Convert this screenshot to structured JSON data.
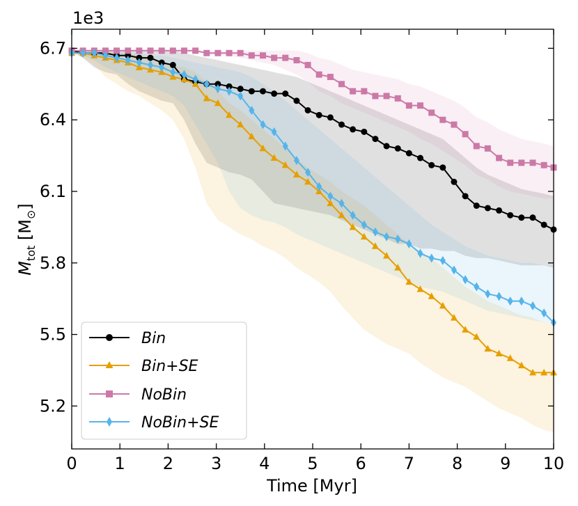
{
  "chart_data": {
    "type": "line",
    "xlabel": "Time [Myr]",
    "ylabel_main": "M",
    "ylabel_sub": "tot",
    "ylabel_unit_open": " [M",
    "ylabel_unit_sub": "⊙",
    "ylabel_unit_close": "]",
    "y_offset_label": "1e3",
    "xlim": [
      0,
      10
    ],
    "ylim": [
      5.02,
      6.78
    ],
    "x_ticks": [
      0,
      1,
      2,
      3,
      4,
      5,
      6,
      7,
      8,
      9,
      10
    ],
    "x_tick_labels": [
      "0",
      "1",
      "2",
      "3",
      "4",
      "5",
      "6",
      "7",
      "8",
      "9",
      "10"
    ],
    "y_ticks": [
      5.2,
      5.5,
      5.8,
      6.1,
      6.4,
      6.7
    ],
    "y_tick_labels": [
      "5.2",
      "5.5",
      "5.8",
      "6.1",
      "6.4",
      "6.7"
    ],
    "grid": false,
    "legend_position": "lower-left",
    "series": [
      {
        "name": "Bin",
        "color": "#000000",
        "marker": "circle",
        "x": [
          0,
          0.233,
          0.467,
          0.7,
          0.933,
          1.167,
          1.4,
          1.633,
          1.867,
          2.1,
          2.333,
          2.567,
          2.8,
          3.033,
          3.267,
          3.5,
          3.733,
          3.967,
          4.2,
          4.433,
          4.667,
          4.9,
          5.133,
          5.367,
          5.6,
          5.833,
          6.067,
          6.3,
          6.533,
          6.767,
          7.0,
          7.233,
          7.467,
          7.7,
          7.933,
          8.167,
          8.4,
          8.633,
          8.867,
          9.1,
          9.333,
          9.567,
          9.8,
          10.0
        ],
        "y": [
          6.69,
          6.68,
          6.68,
          6.68,
          6.67,
          6.67,
          6.66,
          6.66,
          6.64,
          6.63,
          6.57,
          6.56,
          6.55,
          6.55,
          6.54,
          6.53,
          6.52,
          6.52,
          6.51,
          6.51,
          6.48,
          6.44,
          6.42,
          6.41,
          6.38,
          6.36,
          6.35,
          6.32,
          6.29,
          6.28,
          6.26,
          6.24,
          6.21,
          6.2,
          6.14,
          6.08,
          6.04,
          6.03,
          6.02,
          6.0,
          5.99,
          5.99,
          5.96,
          5.94
        ],
        "band_low": [
          6.69,
          6.66,
          6.62,
          6.6,
          6.59,
          6.55,
          6.52,
          6.5,
          6.48,
          6.47,
          6.4,
          6.3,
          6.22,
          6.2,
          6.18,
          6.17,
          6.15,
          6.1,
          6.05,
          6.04,
          6.03,
          6.02,
          6.01,
          6.0,
          5.98,
          5.96,
          5.94,
          5.92,
          5.9,
          5.88,
          5.88,
          5.86,
          5.86,
          5.85,
          5.85,
          5.83,
          5.82,
          5.82,
          5.81,
          5.8,
          5.79,
          5.79,
          5.79,
          5.78
        ],
        "band_high": [
          6.69,
          6.69,
          6.69,
          6.69,
          6.69,
          6.69,
          6.69,
          6.69,
          6.69,
          6.69,
          6.68,
          6.67,
          6.66,
          6.65,
          6.64,
          6.63,
          6.62,
          6.61,
          6.6,
          6.59,
          6.58,
          6.56,
          6.54,
          6.52,
          6.5,
          6.48,
          6.46,
          6.44,
          6.42,
          6.4,
          6.38,
          6.36,
          6.34,
          6.32,
          6.28,
          6.24,
          6.2,
          6.17,
          6.15,
          6.13,
          6.11,
          6.1,
          6.09,
          6.08
        ]
      },
      {
        "name": "Bin+SE",
        "color": "#e69f00",
        "marker": "triangle",
        "x": [
          0,
          0.233,
          0.467,
          0.7,
          0.933,
          1.167,
          1.4,
          1.633,
          1.867,
          2.1,
          2.333,
          2.567,
          2.8,
          3.033,
          3.267,
          3.5,
          3.733,
          3.967,
          4.2,
          4.433,
          4.667,
          4.9,
          5.133,
          5.367,
          5.6,
          5.833,
          6.067,
          6.3,
          6.533,
          6.767,
          7.0,
          7.233,
          7.467,
          7.7,
          7.933,
          8.167,
          8.4,
          8.633,
          8.867,
          9.1,
          9.333,
          9.567,
          9.8,
          10.0
        ],
        "y": [
          6.68,
          6.68,
          6.67,
          6.66,
          6.65,
          6.64,
          6.62,
          6.61,
          6.6,
          6.58,
          6.57,
          6.55,
          6.49,
          6.47,
          6.42,
          6.38,
          6.33,
          6.28,
          6.24,
          6.21,
          6.17,
          6.14,
          6.1,
          6.05,
          6.0,
          5.95,
          5.91,
          5.87,
          5.83,
          5.78,
          5.72,
          5.69,
          5.66,
          5.62,
          5.57,
          5.52,
          5.49,
          5.44,
          5.42,
          5.4,
          5.37,
          5.34,
          5.34,
          5.34
        ],
        "band_low": [
          6.68,
          6.66,
          6.63,
          6.58,
          6.55,
          6.52,
          6.5,
          6.47,
          6.44,
          6.4,
          6.32,
          6.2,
          6.05,
          5.98,
          5.95,
          5.92,
          5.9,
          5.87,
          5.85,
          5.82,
          5.78,
          5.75,
          5.72,
          5.68,
          5.62,
          5.57,
          5.52,
          5.49,
          5.46,
          5.44,
          5.42,
          5.38,
          5.35,
          5.32,
          5.3,
          5.28,
          5.25,
          5.22,
          5.19,
          5.17,
          5.15,
          5.12,
          5.1,
          5.09
        ],
        "band_high": [
          6.68,
          6.69,
          6.69,
          6.69,
          6.68,
          6.68,
          6.67,
          6.66,
          6.64,
          6.63,
          6.62,
          6.6,
          6.56,
          6.52,
          6.47,
          6.44,
          6.4,
          6.36,
          6.32,
          6.28,
          6.24,
          6.2,
          6.17,
          6.14,
          6.1,
          6.07,
          6.04,
          6.0,
          5.96,
          5.92,
          5.88,
          5.85,
          5.82,
          5.78,
          5.74,
          5.7,
          5.67,
          5.64,
          5.62,
          5.6,
          5.58,
          5.57,
          5.55,
          5.55
        ]
      },
      {
        "name": "NoBin",
        "color": "#cc79a7",
        "marker": "square",
        "x": [
          0,
          0.233,
          0.467,
          0.7,
          0.933,
          1.167,
          1.4,
          1.633,
          1.867,
          2.1,
          2.333,
          2.567,
          2.8,
          3.033,
          3.267,
          3.5,
          3.733,
          3.967,
          4.2,
          4.433,
          4.667,
          4.9,
          5.133,
          5.367,
          5.6,
          5.833,
          6.067,
          6.3,
          6.533,
          6.767,
          7.0,
          7.233,
          7.467,
          7.7,
          7.933,
          8.167,
          8.4,
          8.633,
          8.867,
          9.1,
          9.333,
          9.567,
          9.8,
          10.0
        ],
        "y": [
          6.69,
          6.69,
          6.69,
          6.69,
          6.69,
          6.69,
          6.69,
          6.69,
          6.69,
          6.69,
          6.69,
          6.69,
          6.68,
          6.68,
          6.68,
          6.68,
          6.67,
          6.67,
          6.66,
          6.66,
          6.65,
          6.63,
          6.59,
          6.58,
          6.55,
          6.52,
          6.52,
          6.5,
          6.5,
          6.49,
          6.46,
          6.46,
          6.43,
          6.4,
          6.38,
          6.34,
          6.29,
          6.28,
          6.24,
          6.22,
          6.22,
          6.22,
          6.21,
          6.2
        ],
        "band_low": [
          6.69,
          6.69,
          6.69,
          6.69,
          6.69,
          6.69,
          6.69,
          6.69,
          6.69,
          6.69,
          6.69,
          6.68,
          6.68,
          6.67,
          6.67,
          6.66,
          6.65,
          6.64,
          6.63,
          6.61,
          6.59,
          6.56,
          6.52,
          6.5,
          6.47,
          6.45,
          6.43,
          6.41,
          6.39,
          6.37,
          6.35,
          6.32,
          6.3,
          6.27,
          6.24,
          6.21,
          6.17,
          6.15,
          6.12,
          6.1,
          6.09,
          6.08,
          6.07,
          6.07
        ],
        "band_high": [
          6.69,
          6.69,
          6.69,
          6.69,
          6.69,
          6.69,
          6.69,
          6.69,
          6.69,
          6.69,
          6.69,
          6.69,
          6.69,
          6.69,
          6.69,
          6.69,
          6.69,
          6.69,
          6.69,
          6.69,
          6.69,
          6.68,
          6.66,
          6.65,
          6.63,
          6.61,
          6.6,
          6.59,
          6.58,
          6.57,
          6.55,
          6.54,
          6.52,
          6.5,
          6.48,
          6.45,
          6.41,
          6.39,
          6.36,
          6.34,
          6.32,
          6.31,
          6.3,
          6.29
        ]
      },
      {
        "name": "NoBin+SE",
        "color": "#56b4e9",
        "marker": "diamond",
        "x": [
          0,
          0.233,
          0.467,
          0.7,
          0.933,
          1.167,
          1.4,
          1.633,
          1.867,
          2.1,
          2.333,
          2.567,
          2.8,
          3.033,
          3.267,
          3.5,
          3.733,
          3.967,
          4.2,
          4.433,
          4.667,
          4.9,
          5.133,
          5.367,
          5.6,
          5.833,
          6.067,
          6.3,
          6.533,
          6.767,
          7.0,
          7.233,
          7.467,
          7.7,
          7.933,
          8.167,
          8.4,
          8.633,
          8.867,
          9.1,
          9.333,
          9.567,
          9.8,
          10.0
        ],
        "y": [
          6.68,
          6.68,
          6.68,
          6.67,
          6.66,
          6.65,
          6.64,
          6.63,
          6.62,
          6.6,
          6.59,
          6.57,
          6.55,
          6.53,
          6.52,
          6.5,
          6.44,
          6.38,
          6.35,
          6.29,
          6.23,
          6.18,
          6.12,
          6.08,
          6.05,
          6.0,
          5.96,
          5.93,
          5.91,
          5.9,
          5.88,
          5.84,
          5.82,
          5.81,
          5.77,
          5.73,
          5.7,
          5.67,
          5.66,
          5.64,
          5.64,
          5.62,
          5.59,
          5.55
        ],
        "band_low": [
          6.68,
          6.67,
          6.65,
          6.62,
          6.6,
          6.58,
          6.56,
          6.54,
          6.52,
          6.5,
          6.46,
          6.38,
          6.3,
          6.22,
          6.1,
          6.03,
          6.0,
          5.98,
          5.97,
          5.95,
          5.92,
          5.9,
          5.88,
          5.86,
          5.84,
          5.82,
          5.8,
          5.78,
          5.76,
          5.74,
          5.72,
          5.7,
          5.69,
          5.68,
          5.66,
          5.64,
          5.62,
          5.6,
          5.59,
          5.58,
          5.57,
          5.56,
          5.55,
          5.55
        ],
        "band_high": [
          6.68,
          6.69,
          6.69,
          6.69,
          6.69,
          6.68,
          6.68,
          6.67,
          6.67,
          6.66,
          6.65,
          6.64,
          6.63,
          6.62,
          6.61,
          6.6,
          6.58,
          6.55,
          6.52,
          6.48,
          6.44,
          6.4,
          6.36,
          6.32,
          6.28,
          6.24,
          6.2,
          6.16,
          6.12,
          6.08,
          6.04,
          6.0,
          5.96,
          5.93,
          5.9,
          5.87,
          5.85,
          5.83,
          5.82,
          5.81,
          5.8,
          5.8,
          5.79,
          5.79
        ]
      }
    ]
  }
}
